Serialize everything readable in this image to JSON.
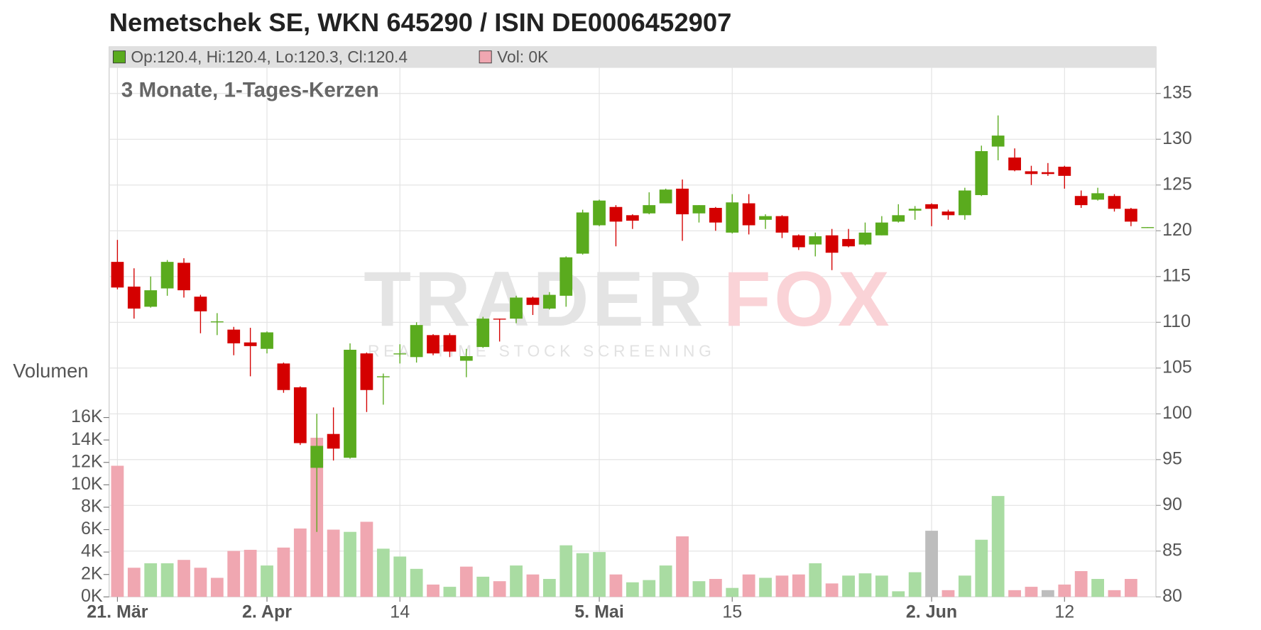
{
  "chart_data": {
    "type": "candlestick",
    "title": "Nemetschek SE, WKN 645290 / ISIN DE0006452907",
    "subtitle": "3 Monate, 1-Tages-Kerzen",
    "y2_axis_label": "Volumen",
    "legend": {
      "ohlc": "Op:120.4, Hi:120.4, Lo:120.3, Cl:120.4",
      "volume": "Vol: 0K"
    },
    "watermark": {
      "brand_part1": "TRADER",
      "brand_part2": "FOX",
      "tagline": "REAL-TIME STOCK SCREENING"
    },
    "categories": [
      "21. Mär",
      null,
      null,
      null,
      null,
      null,
      null,
      null,
      null,
      "2. Apr",
      null,
      null,
      null,
      null,
      null,
      null,
      null,
      "14",
      null,
      null,
      null,
      null,
      null,
      null,
      null,
      null,
      null,
      null,
      null,
      "5. Mai",
      null,
      null,
      null,
      null,
      null,
      null,
      null,
      "15",
      null,
      null,
      null,
      null,
      null,
      null,
      null,
      null,
      null,
      null,
      null,
      "2. Jun",
      null,
      null,
      null,
      null,
      null,
      null,
      null,
      "12",
      null,
      null,
      null,
      null,
      null
    ],
    "series": [
      {
        "name": "open",
        "values": [
          116.6,
          113.9,
          111.7,
          113.7,
          116.5,
          112.8,
          110.0,
          109.2,
          107.8,
          107.1,
          105.5,
          102.9,
          94.1,
          97.8,
          95.2,
          106.6,
          104.0,
          106.5,
          106.2,
          108.6,
          108.6,
          105.8,
          107.3,
          110.4,
          110.4,
          112.7,
          111.5,
          112.9,
          117.5,
          120.6,
          122.6,
          121.7,
          121.9,
          123.0,
          124.6,
          121.9,
          122.5,
          119.8,
          123.0,
          121.2,
          121.6,
          119.5,
          118.5,
          119.5,
          119.1,
          118.5,
          119.5,
          121.0,
          122.2,
          122.9,
          122.1,
          121.7,
          123.9,
          129.2,
          128.0,
          126.5,
          126.4,
          127.0,
          123.8,
          123.4,
          123.8,
          122.4,
          120.4
        ]
      },
      {
        "name": "high",
        "values": [
          119.0,
          115.9,
          115.0,
          116.8,
          117.0,
          113.0,
          111.0,
          109.5,
          109.4,
          109.0,
          105.6,
          103.0,
          100.0,
          100.7,
          107.7,
          106.7,
          104.4,
          107.6,
          110.0,
          108.7,
          108.8,
          107.1,
          110.6,
          110.4,
          112.9,
          112.8,
          113.3,
          117.2,
          122.3,
          123.4,
          122.8,
          121.8,
          124.2,
          124.6,
          125.6,
          122.8,
          122.6,
          124.0,
          124.0,
          121.8,
          121.7,
          119.6,
          119.8,
          120.2,
          120.2,
          120.9,
          121.6,
          122.9,
          122.7,
          123.0,
          122.3,
          124.7,
          129.3,
          132.6,
          129.0,
          127.1,
          127.4,
          127.1,
          124.4,
          124.7,
          124.0,
          122.5,
          120.4
        ]
      },
      {
        "name": "low",
        "values": [
          113.6,
          110.4,
          111.6,
          112.9,
          112.7,
          108.8,
          108.6,
          106.4,
          104.1,
          106.6,
          102.3,
          96.6,
          87.1,
          94.9,
          95.1,
          100.2,
          101.0,
          105.5,
          105.6,
          106.4,
          106.2,
          104.0,
          107.2,
          107.9,
          109.9,
          110.8,
          111.4,
          111.7,
          117.4,
          120.5,
          118.3,
          120.2,
          121.8,
          123.0,
          118.9,
          120.9,
          120.0,
          119.7,
          119.6,
          120.2,
          119.2,
          117.9,
          117.2,
          115.7,
          118.2,
          118.4,
          119.5,
          120.9,
          121.2,
          120.5,
          121.2,
          121.2,
          123.8,
          127.7,
          126.5,
          125.0,
          126.0,
          124.6,
          122.5,
          123.3,
          122.1,
          120.5,
          120.3
        ]
      },
      {
        "name": "close",
        "values": [
          113.8,
          111.5,
          113.5,
          116.6,
          113.5,
          111.2,
          110.1,
          107.7,
          107.4,
          108.9,
          102.6,
          96.8,
          96.5,
          96.2,
          107.0,
          102.6,
          104.1,
          106.6,
          109.7,
          106.6,
          106.8,
          106.3,
          110.4,
          110.3,
          112.7,
          111.9,
          113.0,
          117.1,
          122.0,
          123.3,
          121.0,
          121.1,
          122.8,
          124.5,
          121.8,
          122.8,
          120.9,
          123.1,
          120.6,
          121.6,
          119.8,
          118.2,
          119.4,
          117.6,
          118.3,
          119.8,
          120.9,
          121.7,
          122.4,
          122.4,
          121.7,
          124.4,
          128.7,
          130.4,
          126.6,
          126.2,
          126.2,
          126.0,
          122.8,
          124.1,
          122.4,
          121.0,
          120.4
        ]
      },
      {
        "name": "volume",
        "axis": "y2",
        "values": [
          11700,
          2600,
          3000,
          3000,
          3300,
          2600,
          1700,
          4100,
          4200,
          2800,
          4400,
          6100,
          14200,
          6000,
          5800,
          6700,
          4300,
          3600,
          2500,
          1100,
          900,
          2700,
          1800,
          1400,
          2800,
          2000,
          1600,
          4600,
          3900,
          4000,
          2000,
          1300,
          1500,
          2800,
          5400,
          1400,
          1600,
          800,
          2000,
          1700,
          1900,
          2000,
          3000,
          1200,
          1900,
          2100,
          1900,
          500,
          2200,
          5900,
          600,
          1900,
          5100,
          9000,
          600,
          900,
          600,
          1100,
          2300,
          1600,
          600,
          1600,
          0
        ]
      }
    ],
    "up_color": "#5aab1e",
    "down_color": "#d40000",
    "volume_up_color": "#a9dca2",
    "volume_down_color": "#f0a7b1",
    "volume_flat_color": "#bdbdbd",
    "ylim": [
      80,
      137.8
    ],
    "yticks": [
      80,
      85,
      90,
      95,
      100,
      105,
      110,
      115,
      120,
      125,
      130,
      135
    ],
    "y2lim": [
      0,
      47200
    ],
    "y2ticks": [
      {
        "value": 0,
        "label": "0K"
      },
      {
        "value": 2000,
        "label": "2K"
      },
      {
        "value": 4000,
        "label": "4K"
      },
      {
        "value": 6000,
        "label": "6K"
      },
      {
        "value": 8000,
        "label": "8K"
      },
      {
        "value": 10000,
        "label": "10K"
      },
      {
        "value": 12000,
        "label": "12K"
      },
      {
        "value": 14000,
        "label": "14K"
      },
      {
        "value": 16000,
        "label": "16K"
      }
    ],
    "grid": true
  }
}
